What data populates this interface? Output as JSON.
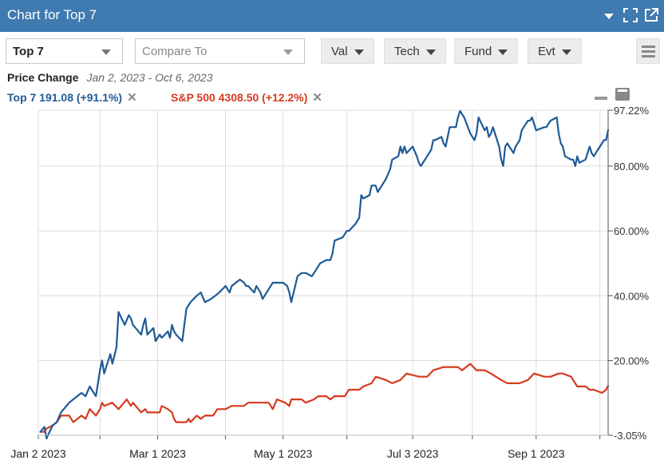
{
  "header": {
    "title": "Chart for Top 7"
  },
  "toolbar": {
    "symbol_value": "Top 7",
    "compare_placeholder": "Compare To",
    "buttons": [
      "Val",
      "Tech",
      "Fund",
      "Evt"
    ]
  },
  "info": {
    "label": "Price Change",
    "range": "Jan 2, 2023 - Oct 6, 2023"
  },
  "legend": [
    {
      "text": "Top 7 191.08 (+91.1%)",
      "color": "#1f5a96"
    },
    {
      "text": "S&P 500 4308.50 (+12.2%)",
      "color": "#d63a1f"
    }
  ],
  "colors": {
    "header_bg": "#3f7ab0",
    "top7": "#1f5a96",
    "sp500": "#d63a1f",
    "grid": "#dcdcdc"
  },
  "chart_data": {
    "type": "line",
    "ylim": [
      -3.05,
      97.22
    ],
    "y_ticks": [
      "97.22%",
      "80.00%",
      "60.00%",
      "40.00%",
      "20.00%",
      "-3.05%"
    ],
    "x_ticks": [
      "Jan 2 2023",
      "Mar 1 2023",
      "May 1 2023",
      "Jul 3 2023",
      "Sep 1 2023"
    ],
    "grid": true,
    "series": [
      {
        "name": "Top 7",
        "color": "#1f5a96",
        "points": [
          [
            "2023-01-03",
            -2
          ],
          [
            "2023-01-05",
            -0.5
          ],
          [
            "2023-01-06",
            -4
          ],
          [
            "2023-01-09",
            0
          ],
          [
            "2023-01-11",
            1
          ],
          [
            "2023-01-13",
            4
          ],
          [
            "2023-01-17",
            7
          ],
          [
            "2023-01-19",
            8
          ],
          [
            "2023-01-23",
            10
          ],
          [
            "2023-01-25",
            9
          ],
          [
            "2023-01-27",
            12
          ],
          [
            "2023-01-30",
            9
          ],
          [
            "2023-02-01",
            17
          ],
          [
            "2023-02-02",
            20
          ],
          [
            "2023-02-03",
            16
          ],
          [
            "2023-02-06",
            22
          ],
          [
            "2023-02-07",
            19
          ],
          [
            "2023-02-09",
            24
          ],
          [
            "2023-02-10",
            35
          ],
          [
            "2023-02-13",
            31
          ],
          [
            "2023-02-15",
            34
          ],
          [
            "2023-02-16",
            33
          ],
          [
            "2023-02-17",
            31
          ],
          [
            "2023-02-21",
            28
          ],
          [
            "2023-02-22",
            31
          ],
          [
            "2023-02-23",
            33
          ],
          [
            "2023-02-24",
            28
          ],
          [
            "2023-02-27",
            30
          ],
          [
            "2023-02-28",
            26
          ],
          [
            "2023-03-01",
            27
          ],
          [
            "2023-03-02",
            28
          ],
          [
            "2023-03-03",
            27
          ],
          [
            "2023-03-06",
            29
          ],
          [
            "2023-03-07",
            27
          ],
          [
            "2023-03-08",
            31
          ],
          [
            "2023-03-09",
            29
          ],
          [
            "2023-03-10",
            28
          ],
          [
            "2023-03-13",
            26
          ],
          [
            "2023-03-14",
            31
          ],
          [
            "2023-03-15",
            36
          ],
          [
            "2023-03-17",
            38
          ],
          [
            "2023-03-20",
            40
          ],
          [
            "2023-03-22",
            41
          ],
          [
            "2023-03-24",
            38
          ],
          [
            "2023-03-27",
            39
          ],
          [
            "2023-03-29",
            40
          ],
          [
            "2023-03-31",
            41
          ],
          [
            "2023-04-03",
            43
          ],
          [
            "2023-04-05",
            41
          ],
          [
            "2023-04-06",
            43
          ],
          [
            "2023-04-10",
            45
          ],
          [
            "2023-04-12",
            44
          ],
          [
            "2023-04-13",
            43
          ],
          [
            "2023-04-14",
            43
          ],
          [
            "2023-04-17",
            41
          ],
          [
            "2023-04-18",
            43
          ],
          [
            "2023-04-20",
            41
          ],
          [
            "2023-04-21",
            39
          ],
          [
            "2023-04-24",
            42
          ],
          [
            "2023-04-26",
            44
          ],
          [
            "2023-04-28",
            44
          ],
          [
            "2023-05-01",
            44
          ],
          [
            "2023-05-03",
            43
          ],
          [
            "2023-05-04",
            41
          ],
          [
            "2023-05-05",
            38
          ],
          [
            "2023-05-08",
            46
          ],
          [
            "2023-05-10",
            47
          ],
          [
            "2023-05-12",
            47
          ],
          [
            "2023-05-15",
            46
          ],
          [
            "2023-05-17",
            48
          ],
          [
            "2023-05-19",
            50
          ],
          [
            "2023-05-22",
            51
          ],
          [
            "2023-05-24",
            51
          ],
          [
            "2023-05-25",
            53
          ],
          [
            "2023-05-26",
            57
          ],
          [
            "2023-05-30",
            58
          ],
          [
            "2023-06-01",
            60
          ],
          [
            "2023-06-02",
            60
          ],
          [
            "2023-06-05",
            62
          ],
          [
            "2023-06-07",
            64
          ],
          [
            "2023-06-08",
            71
          ],
          [
            "2023-06-09",
            70
          ],
          [
            "2023-06-12",
            71
          ],
          [
            "2023-06-13",
            74
          ],
          [
            "2023-06-15",
            74
          ],
          [
            "2023-06-16",
            72
          ],
          [
            "2023-06-20",
            76
          ],
          [
            "2023-06-22",
            79
          ],
          [
            "2023-06-23",
            82
          ],
          [
            "2023-06-26",
            83
          ],
          [
            "2023-06-27",
            86
          ],
          [
            "2023-06-28",
            84
          ],
          [
            "2023-06-29",
            86
          ],
          [
            "2023-06-30",
            84
          ],
          [
            "2023-07-03",
            86
          ],
          [
            "2023-07-05",
            83
          ],
          [
            "2023-07-06",
            81
          ],
          [
            "2023-07-07",
            80
          ],
          [
            "2023-07-10",
            83
          ],
          [
            "2023-07-12",
            85
          ],
          [
            "2023-07-13",
            88
          ],
          [
            "2023-07-14",
            88
          ],
          [
            "2023-07-17",
            89
          ],
          [
            "2023-07-18",
            87
          ],
          [
            "2023-07-19",
            86
          ],
          [
            "2023-07-20",
            89
          ],
          [
            "2023-07-21",
            92
          ],
          [
            "2023-07-24",
            92
          ],
          [
            "2023-07-25",
            95
          ],
          [
            "2023-07-26",
            97
          ],
          [
            "2023-07-27",
            96
          ],
          [
            "2023-07-28",
            95
          ],
          [
            "2023-07-31",
            90
          ],
          [
            "2023-08-02",
            88
          ],
          [
            "2023-08-03",
            90
          ],
          [
            "2023-08-04",
            95
          ],
          [
            "2023-08-07",
            91
          ],
          [
            "2023-08-08",
            92
          ],
          [
            "2023-08-09",
            89
          ],
          [
            "2023-08-10",
            90
          ],
          [
            "2023-08-11",
            92
          ],
          [
            "2023-08-14",
            86
          ],
          [
            "2023-08-15",
            82
          ],
          [
            "2023-08-16",
            80
          ],
          [
            "2023-08-17",
            86
          ],
          [
            "2023-08-18",
            87
          ],
          [
            "2023-08-21",
            84
          ],
          [
            "2023-08-22",
            86
          ],
          [
            "2023-08-23",
            87
          ],
          [
            "2023-08-24",
            88
          ],
          [
            "2023-08-25",
            91
          ],
          [
            "2023-08-28",
            94
          ],
          [
            "2023-08-29",
            94
          ],
          [
            "2023-08-30",
            95
          ],
          [
            "2023-08-31",
            93
          ],
          [
            "2023-09-01",
            91
          ],
          [
            "2023-09-05",
            92
          ],
          [
            "2023-09-06",
            92
          ],
          [
            "2023-09-07",
            93
          ],
          [
            "2023-09-08",
            94
          ],
          [
            "2023-09-11",
            95
          ],
          [
            "2023-09-12",
            90
          ],
          [
            "2023-09-13",
            87
          ],
          [
            "2023-09-14",
            86
          ],
          [
            "2023-09-15",
            83
          ],
          [
            "2023-09-18",
            82
          ],
          [
            "2023-09-19",
            82
          ],
          [
            "2023-09-20",
            80
          ],
          [
            "2023-09-21",
            83
          ],
          [
            "2023-09-22",
            81
          ],
          [
            "2023-09-25",
            82
          ],
          [
            "2023-09-26",
            84
          ],
          [
            "2023-09-27",
            86
          ],
          [
            "2023-09-28",
            84
          ],
          [
            "2023-09-29",
            83
          ],
          [
            "2023-10-02",
            86
          ],
          [
            "2023-10-03",
            87
          ],
          [
            "2023-10-04",
            88
          ],
          [
            "2023-10-05",
            88
          ],
          [
            "2023-10-06",
            91.1
          ]
        ]
      },
      {
        "name": "S&P 500",
        "color": "#d63a1f",
        "points": [
          [
            "2023-01-03",
            -2
          ],
          [
            "2023-01-05",
            -2
          ],
          [
            "2023-01-06",
            -1
          ],
          [
            "2023-01-09",
            0
          ],
          [
            "2023-01-11",
            1
          ],
          [
            "2023-01-13",
            3
          ],
          [
            "2023-01-17",
            3
          ],
          [
            "2023-01-19",
            1
          ],
          [
            "2023-01-23",
            3
          ],
          [
            "2023-01-25",
            2
          ],
          [
            "2023-01-27",
            5
          ],
          [
            "2023-01-30",
            3
          ],
          [
            "2023-02-01",
            5
          ],
          [
            "2023-02-02",
            7
          ],
          [
            "2023-02-03",
            6
          ],
          [
            "2023-02-07",
            7
          ],
          [
            "2023-02-10",
            5
          ],
          [
            "2023-02-14",
            8
          ],
          [
            "2023-02-16",
            6
          ],
          [
            "2023-02-17",
            7
          ],
          [
            "2023-02-21",
            4
          ],
          [
            "2023-02-23",
            5
          ],
          [
            "2023-02-24",
            4
          ],
          [
            "2023-02-28",
            4
          ],
          [
            "2023-03-02",
            4
          ],
          [
            "2023-03-03",
            6
          ],
          [
            "2023-03-06",
            5
          ],
          [
            "2023-03-08",
            4
          ],
          [
            "2023-03-09",
            2
          ],
          [
            "2023-03-10",
            1
          ],
          [
            "2023-03-13",
            1
          ],
          [
            "2023-03-15",
            1
          ],
          [
            "2023-03-16",
            2
          ],
          [
            "2023-03-17",
            1
          ],
          [
            "2023-03-20",
            3
          ],
          [
            "2023-03-22",
            2
          ],
          [
            "2023-03-24",
            3
          ],
          [
            "2023-03-28",
            3
          ],
          [
            "2023-03-30",
            5
          ],
          [
            "2023-04-03",
            5
          ],
          [
            "2023-04-06",
            6
          ],
          [
            "2023-04-12",
            6
          ],
          [
            "2023-04-14",
            7
          ],
          [
            "2023-04-17",
            7
          ],
          [
            "2023-04-21",
            7
          ],
          [
            "2023-04-24",
            7
          ],
          [
            "2023-04-26",
            5
          ],
          [
            "2023-04-28",
            8
          ],
          [
            "2023-05-02",
            7
          ],
          [
            "2023-05-04",
            6
          ],
          [
            "2023-05-05",
            8
          ],
          [
            "2023-05-10",
            8
          ],
          [
            "2023-05-12",
            7
          ],
          [
            "2023-05-16",
            8
          ],
          [
            "2023-05-18",
            9
          ],
          [
            "2023-05-22",
            9
          ],
          [
            "2023-05-24",
            8
          ],
          [
            "2023-05-26",
            9
          ],
          [
            "2023-05-31",
            9
          ],
          [
            "2023-06-02",
            11
          ],
          [
            "2023-06-07",
            11
          ],
          [
            "2023-06-09",
            12
          ],
          [
            "2023-06-13",
            13
          ],
          [
            "2023-06-15",
            15
          ],
          [
            "2023-06-20",
            14
          ],
          [
            "2023-06-23",
            13
          ],
          [
            "2023-06-27",
            14
          ],
          [
            "2023-06-30",
            16
          ],
          [
            "2023-07-06",
            15
          ],
          [
            "2023-07-10",
            15
          ],
          [
            "2023-07-13",
            17
          ],
          [
            "2023-07-18",
            18
          ],
          [
            "2023-07-21",
            18
          ],
          [
            "2023-07-25",
            18
          ],
          [
            "2023-07-27",
            17
          ],
          [
            "2023-07-31",
            19
          ],
          [
            "2023-08-03",
            17
          ],
          [
            "2023-08-07",
            17
          ],
          [
            "2023-08-10",
            16
          ],
          [
            "2023-08-15",
            14
          ],
          [
            "2023-08-18",
            13
          ],
          [
            "2023-08-22",
            13
          ],
          [
            "2023-08-24",
            13
          ],
          [
            "2023-08-28",
            14
          ],
          [
            "2023-08-31",
            16
          ],
          [
            "2023-09-05",
            15
          ],
          [
            "2023-09-08",
            15
          ],
          [
            "2023-09-12",
            16
          ],
          [
            "2023-09-14",
            16
          ],
          [
            "2023-09-18",
            15
          ],
          [
            "2023-09-21",
            12
          ],
          [
            "2023-09-25",
            12
          ],
          [
            "2023-09-27",
            11
          ],
          [
            "2023-09-29",
            11
          ],
          [
            "2023-10-03",
            10
          ],
          [
            "2023-10-05",
            11
          ],
          [
            "2023-10-06",
            12.2
          ]
        ]
      }
    ]
  }
}
